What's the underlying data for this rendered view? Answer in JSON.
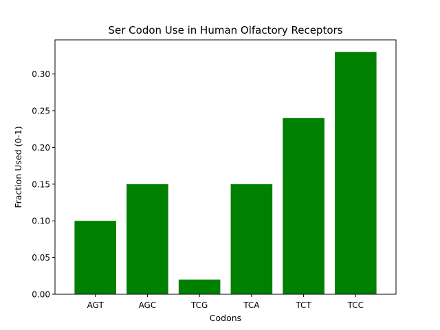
{
  "chart_data": {
    "type": "bar",
    "title": "Ser Codon Use in Human Olfactory Receptors",
    "xlabel": "Codons",
    "ylabel": "Fraction Used (0-1)",
    "categories": [
      "AGT",
      "AGC",
      "TCG",
      "TCA",
      "TCT",
      "TCC"
    ],
    "values": [
      0.1,
      0.15,
      0.02,
      0.15,
      0.24,
      0.33
    ],
    "ylim": [
      0,
      0.3465
    ],
    "yticks": [
      0.0,
      0.05,
      0.1,
      0.15,
      0.2,
      0.25,
      0.3
    ],
    "ytick_labels": [
      "0.00",
      "0.05",
      "0.10",
      "0.15",
      "0.20",
      "0.25",
      "0.30"
    ],
    "bar_color": "#008000",
    "grid": false,
    "legend": "none"
  }
}
